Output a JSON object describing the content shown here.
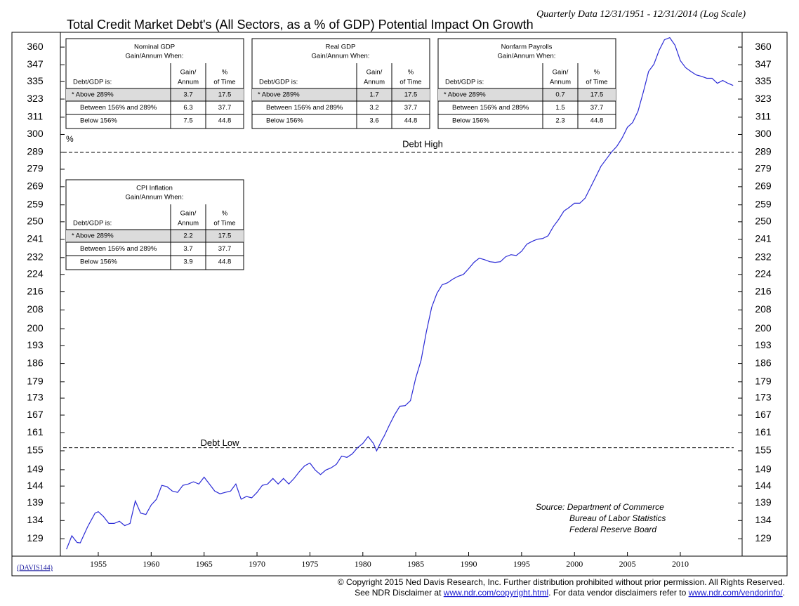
{
  "chart_data": {
    "type": "line",
    "title": "Total Credit Market Debt's (All Sectors, as a % of GDP) Potential Impact On Growth",
    "subtitle": "Quarterly Data 12/31/1951 - 12/31/2014 (Log Scale)",
    "y_unit": "%",
    "log_scale": true,
    "x": [
      1952.0,
      1952.5,
      1953.0,
      1953.3,
      1954.0,
      1954.7,
      1955.0,
      1955.5,
      1956.0,
      1956.5,
      1957.0,
      1957.5,
      1958.0,
      1958.5,
      1959.0,
      1959.5,
      1960.0,
      1960.5,
      1961.0,
      1961.5,
      1962.0,
      1962.5,
      1963.0,
      1963.5,
      1964.0,
      1964.5,
      1965.0,
      1965.5,
      1966.0,
      1966.5,
      1967.0,
      1967.5,
      1968.0,
      1968.5,
      1969.0,
      1969.5,
      1970.0,
      1970.5,
      1971.0,
      1971.5,
      1972.0,
      1972.5,
      1973.0,
      1973.5,
      1974.0,
      1974.5,
      1975.0,
      1975.5,
      1976.0,
      1976.5,
      1977.0,
      1977.5,
      1978.0,
      1978.5,
      1979.0,
      1979.5,
      1980.0,
      1980.5,
      1981.0,
      1981.3,
      1981.8,
      1982.0,
      1982.5,
      1983.0,
      1983.5,
      1984.0,
      1984.5,
      1985.0,
      1985.5,
      1986.0,
      1986.5,
      1987.0,
      1987.5,
      1988.0,
      1988.5,
      1989.0,
      1989.5,
      1990.0,
      1990.5,
      1991.0,
      1991.5,
      1992.0,
      1992.5,
      1993.0,
      1993.5,
      1994.0,
      1994.5,
      1995.0,
      1995.5,
      1996.0,
      1996.5,
      1997.0,
      1997.5,
      1998.0,
      1998.5,
      1999.0,
      1999.5,
      2000.0,
      2000.5,
      2001.0,
      2001.5,
      2002.0,
      2002.5,
      2003.0,
      2003.5,
      2004.0,
      2004.5,
      2005.0,
      2005.5,
      2006.0,
      2006.5,
      2007.0,
      2007.5,
      2008.0,
      2008.5,
      2009.0,
      2009.5,
      2010.0,
      2010.5,
      2011.0,
      2011.5,
      2012.0,
      2012.5,
      2013.0,
      2013.5,
      2014.0,
      2014.5,
      2014.99
    ],
    "series": [
      {
        "name": "Total Credit Market Debt % of GDP",
        "color": "#2b2bd6",
        "values": [
          126.2,
          129.8,
          128.0,
          127.9,
          132.3,
          136.1,
          136.5,
          135.1,
          133.2,
          133.2,
          133.8,
          132.6,
          133.2,
          139.6,
          136.1,
          135.7,
          138.4,
          140.1,
          144.2,
          143.8,
          142.5,
          142.1,
          144.2,
          144.6,
          145.3,
          144.6,
          146.7,
          144.6,
          142.5,
          141.7,
          142.1,
          142.5,
          144.6,
          140.1,
          140.9,
          140.5,
          142.1,
          144.2,
          144.6,
          146.3,
          144.6,
          146.3,
          144.6,
          146.3,
          148.4,
          150.2,
          151.1,
          148.9,
          147.5,
          148.9,
          149.6,
          150.7,
          153.3,
          152.9,
          154.0,
          156.0,
          157.4,
          159.7,
          157.4,
          155.0,
          158.5,
          159.7,
          163.5,
          167.1,
          170.1,
          170.3,
          172.1,
          180.4,
          187.2,
          198.6,
          209.1,
          215.3,
          219.2,
          220.1,
          221.8,
          223.1,
          224.0,
          226.7,
          229.7,
          231.7,
          231.0,
          230.0,
          229.7,
          230.0,
          232.4,
          233.4,
          233.0,
          235.1,
          238.6,
          240.0,
          241.1,
          241.4,
          242.8,
          247.5,
          251.2,
          255.7,
          257.6,
          259.9,
          259.9,
          262.6,
          268.5,
          274.5,
          280.7,
          284.9,
          289.2,
          292.6,
          297.8,
          304.5,
          307.6,
          314.9,
          327.6,
          342.2,
          347.3,
          357.6,
          365.6,
          367.2,
          361.4,
          350.0,
          344.9,
          342.2,
          339.7,
          338.7,
          337.3,
          337.3,
          333.8,
          335.8,
          333.8,
          332.3
        ]
      }
    ],
    "xlim": [
      1951.42,
      2015.84
    ],
    "xticks": [
      1955,
      1960,
      1965,
      1970,
      1975,
      1980,
      1985,
      1990,
      1995,
      2000,
      2005,
      2010
    ],
    "ylim": [
      124.4,
      371.3
    ],
    "yticks": [
      129,
      134,
      139,
      144,
      149,
      155,
      161,
      167,
      173,
      179,
      186,
      193,
      200,
      208,
      216,
      224,
      232,
      241,
      250,
      259,
      269,
      279,
      289,
      300,
      311,
      323,
      335,
      347,
      360
    ],
    "reference_lines": [
      {
        "value": 289,
        "label": "Debt High"
      },
      {
        "value": 156,
        "label": "Debt Low"
      }
    ],
    "tables": [
      {
        "title": "Nominal GDP",
        "subtitle": "Gain/Annum When:",
        "headers": [
          [
            "Debt/GDP is:"
          ],
          [
            "Gain/",
            "Annum"
          ],
          [
            "%",
            "of Time"
          ]
        ],
        "rows": [
          [
            "* Above 289%",
            "3.7",
            "17.5"
          ],
          [
            "Between 156% and 289%",
            "6.3",
            "37.7"
          ],
          [
            "Below 156%",
            "7.5",
            "44.8"
          ]
        ]
      },
      {
        "title": "Real GDP",
        "subtitle": "Gain/Annum When:",
        "headers": [
          [
            "Debt/GDP is:"
          ],
          [
            "Gain/",
            "Annum"
          ],
          [
            "%",
            "of Time"
          ]
        ],
        "rows": [
          [
            "* Above 289%",
            "1.7",
            "17.5"
          ],
          [
            "Between 156% and 289%",
            "3.2",
            "37.7"
          ],
          [
            "Below 156%",
            "3.6",
            "44.8"
          ]
        ]
      },
      {
        "title": "Nonfarm Payrolls",
        "subtitle": "Gain/Annum When:",
        "headers": [
          [
            "Debt/GDP is:"
          ],
          [
            "Gain/",
            "Annum"
          ],
          [
            "%",
            "of Time"
          ]
        ],
        "rows": [
          [
            "* Above 289%",
            "0.7",
            "17.5"
          ],
          [
            "Between 156% and 289%",
            "1.5",
            "37.7"
          ],
          [
            "Below 156%",
            "2.3",
            "44.8"
          ]
        ]
      },
      {
        "title": "CPI Inflation",
        "subtitle": "Gain/Annum When:",
        "headers": [
          [
            "Debt/GDP is:"
          ],
          [
            "Gain/",
            "Annum"
          ],
          [
            "%",
            "of Time"
          ]
        ],
        "rows": [
          [
            "* Above 289%",
            "2.2",
            "17.5"
          ],
          [
            "Between 156% and 289%",
            "3.7",
            "37.7"
          ],
          [
            "Below 156%",
            "3.9",
            "44.8"
          ]
        ]
      }
    ],
    "source": [
      "Source: Department of Commerce",
      "Bureau of Labor Statistics",
      "Federal Reserve Board"
    ],
    "chart_id": "(DAVIS144)",
    "footer": {
      "line1": "© Copyright 2015 Ned Davis Research, Inc.  Further distribution prohibited without prior permission.  All Rights Reserved.",
      "line2": [
        "See NDR Disclaimer at ",
        "www.ndr.com/copyright.html",
        ". For data vendor disclaimers refer to ",
        "www.ndr.com/vendorinfo/",
        "."
      ]
    }
  }
}
